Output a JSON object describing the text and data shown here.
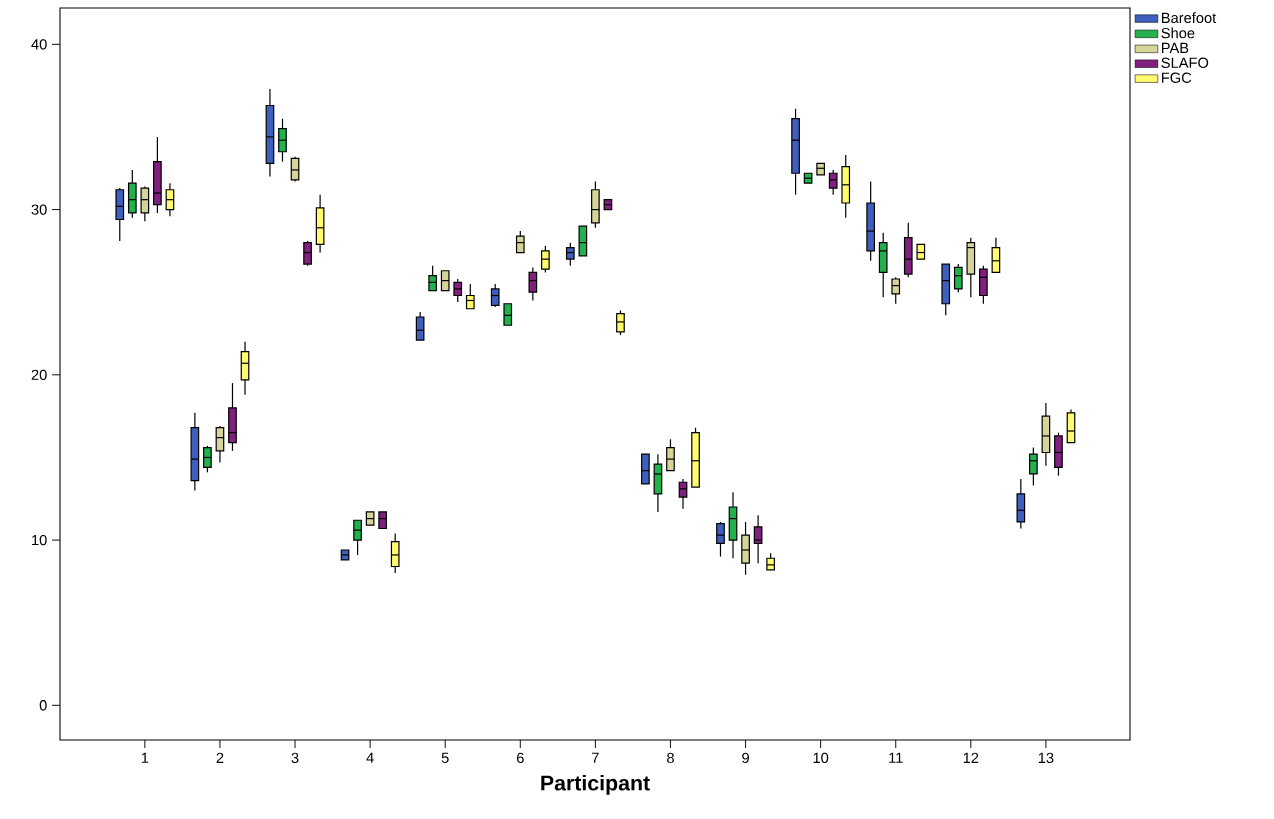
{
  "chart_data": {
    "type": "box",
    "xlabel": "Participant",
    "categories": [
      "1",
      "2",
      "3",
      "4",
      "5",
      "6",
      "7",
      "8",
      "9",
      "10",
      "11",
      "12",
      "13"
    ],
    "ylim": [
      -2.1,
      42.2
    ],
    "yticks": [
      0,
      10,
      20,
      30,
      40
    ],
    "legend": "top right",
    "series": [
      {
        "name": "Barefoot",
        "color": "#3f5fbf",
        "boxes": [
          {
            "low": 28.1,
            "q1": 29.4,
            "median": 30.2,
            "q3": 31.2,
            "high": 31.3
          },
          {
            "low": 13.0,
            "q1": 13.6,
            "median": 14.9,
            "q3": 16.8,
            "high": 17.7
          },
          {
            "low": 32.0,
            "q1": 32.8,
            "median": 34.4,
            "q3": 36.3,
            "high": 37.3
          },
          {
            "low": 8.8,
            "q1": 8.8,
            "median": 9.1,
            "q3": 9.4,
            "high": 9.4
          },
          {
            "low": 22.1,
            "q1": 22.1,
            "median": 22.7,
            "q3": 23.5,
            "high": 23.8
          },
          {
            "low": 24.1,
            "q1": 24.2,
            "median": 24.8,
            "q3": 25.2,
            "high": 25.5
          },
          {
            "low": 26.6,
            "q1": 27.0,
            "median": 27.4,
            "q3": 27.7,
            "high": 28.0
          },
          {
            "low": 13.4,
            "q1": 13.4,
            "median": 14.2,
            "q3": 15.2,
            "high": 15.2
          },
          {
            "low": 9.0,
            "q1": 9.8,
            "median": 10.3,
            "q3": 11.0,
            "high": 11.1
          },
          {
            "low": 30.9,
            "q1": 32.2,
            "median": 34.2,
            "q3": 35.5,
            "high": 36.1
          },
          {
            "low": 26.9,
            "q1": 27.5,
            "median": 28.7,
            "q3": 30.4,
            "high": 31.7
          },
          {
            "low": 23.6,
            "q1": 24.3,
            "median": 25.7,
            "q3": 26.7,
            "high": 26.7
          },
          {
            "low": 10.7,
            "q1": 11.1,
            "median": 11.8,
            "q3": 12.8,
            "high": 13.7
          }
        ]
      },
      {
        "name": "Shoe",
        "color": "#22b14c",
        "boxes": [
          {
            "low": 29.5,
            "q1": 29.8,
            "median": 30.6,
            "q3": 31.6,
            "high": 32.4
          },
          {
            "low": 14.1,
            "q1": 14.4,
            "median": 15.0,
            "q3": 15.6,
            "high": 15.7
          },
          {
            "low": 32.9,
            "q1": 33.5,
            "median": 34.2,
            "q3": 34.9,
            "high": 35.5
          },
          {
            "low": 9.1,
            "q1": 10.0,
            "median": 10.6,
            "q3": 11.2,
            "high": 11.2
          },
          {
            "low": 25.1,
            "q1": 25.1,
            "median": 25.6,
            "q3": 26.0,
            "high": 26.6
          },
          {
            "low": 23.0,
            "q1": 23.0,
            "median": 23.6,
            "q3": 24.3,
            "high": 24.3
          },
          {
            "low": 27.2,
            "q1": 27.2,
            "median": 28.0,
            "q3": 29.0,
            "high": 29.0
          },
          {
            "low": 11.7,
            "q1": 12.8,
            "median": 14.0,
            "q3": 14.6,
            "high": 15.2
          },
          {
            "low": 8.9,
            "q1": 10.0,
            "median": 11.3,
            "q3": 12.0,
            "high": 12.9
          },
          {
            "low": 31.6,
            "q1": 31.6,
            "median": 31.9,
            "q3": 32.2,
            "high": 32.2
          },
          {
            "low": 24.7,
            "q1": 26.2,
            "median": 27.5,
            "q3": 28.0,
            "high": 28.6
          },
          {
            "low": 25.0,
            "q1": 25.2,
            "median": 26.0,
            "q3": 26.5,
            "high": 26.7
          },
          {
            "low": 13.3,
            "q1": 14.0,
            "median": 14.8,
            "q3": 15.2,
            "high": 15.6
          }
        ]
      },
      {
        "name": "PAB",
        "color": "#d7d49a",
        "boxes": [
          {
            "low": 29.3,
            "q1": 29.8,
            "median": 30.6,
            "q3": 31.3,
            "high": 31.4
          },
          {
            "low": 14.7,
            "q1": 15.4,
            "median": 16.2,
            "q3": 16.8,
            "high": 16.9
          },
          {
            "low": 31.7,
            "q1": 31.8,
            "median": 32.4,
            "q3": 33.1,
            "high": 33.2
          },
          {
            "low": 10.9,
            "q1": 10.9,
            "median": 11.3,
            "q3": 11.7,
            "high": 11.7
          },
          {
            "low": 25.1,
            "q1": 25.1,
            "median": 25.7,
            "q3": 26.3,
            "high": 26.3
          },
          {
            "low": 27.4,
            "q1": 27.4,
            "median": 28.0,
            "q3": 28.4,
            "high": 28.7
          },
          {
            "low": 28.9,
            "q1": 29.2,
            "median": 30.0,
            "q3": 31.2,
            "high": 31.7
          },
          {
            "low": 14.2,
            "q1": 14.2,
            "median": 14.9,
            "q3": 15.6,
            "high": 16.1
          },
          {
            "low": 7.9,
            "q1": 8.6,
            "median": 9.4,
            "q3": 10.3,
            "high": 11.1
          },
          {
            "low": 32.1,
            "q1": 32.1,
            "median": 32.5,
            "q3": 32.8,
            "high": 32.8
          },
          {
            "low": 24.3,
            "q1": 24.9,
            "median": 25.4,
            "q3": 25.8,
            "high": 25.9
          },
          {
            "low": 24.7,
            "q1": 26.1,
            "median": 27.7,
            "q3": 28.0,
            "high": 28.3
          },
          {
            "low": 14.5,
            "q1": 15.3,
            "median": 16.3,
            "q3": 17.5,
            "high": 18.3
          }
        ]
      },
      {
        "name": "SLAFO",
        "color": "#80207f",
        "boxes": [
          {
            "low": 29.8,
            "q1": 30.3,
            "median": 31.0,
            "q3": 32.9,
            "high": 34.4
          },
          {
            "low": 15.4,
            "q1": 15.9,
            "median": 16.5,
            "q3": 18.0,
            "high": 19.5
          },
          {
            "low": 26.6,
            "q1": 26.7,
            "median": 27.4,
            "q3": 28.0,
            "high": 28.1
          },
          {
            "low": 10.7,
            "q1": 10.7,
            "median": 11.3,
            "q3": 11.7,
            "high": 11.7
          },
          {
            "low": 24.4,
            "q1": 24.8,
            "median": 25.2,
            "q3": 25.6,
            "high": 25.8
          },
          {
            "low": 24.5,
            "q1": 25.0,
            "median": 25.7,
            "q3": 26.2,
            "high": 26.5
          },
          {
            "low": 30.0,
            "q1": 30.0,
            "median": 30.3,
            "q3": 30.6,
            "high": 30.6
          },
          {
            "low": 11.9,
            "q1": 12.6,
            "median": 13.1,
            "q3": 13.5,
            "high": 13.7
          },
          {
            "low": 8.6,
            "q1": 9.8,
            "median": 10.0,
            "q3": 10.8,
            "high": 11.5
          },
          {
            "low": 30.9,
            "q1": 31.3,
            "median": 31.8,
            "q3": 32.2,
            "high": 32.4
          },
          {
            "low": 25.9,
            "q1": 26.1,
            "median": 27.0,
            "q3": 28.3,
            "high": 29.2
          },
          {
            "low": 24.3,
            "q1": 24.8,
            "median": 25.9,
            "q3": 26.4,
            "high": 26.6
          },
          {
            "low": 13.9,
            "q1": 14.4,
            "median": 15.3,
            "q3": 16.3,
            "high": 16.5
          }
        ]
      },
      {
        "name": "FGC",
        "color": "#fffa6e",
        "boxes": [
          {
            "low": 29.6,
            "q1": 30.0,
            "median": 30.6,
            "q3": 31.2,
            "high": 31.6
          },
          {
            "low": 18.8,
            "q1": 19.7,
            "median": 20.7,
            "q3": 21.4,
            "high": 22.0
          },
          {
            "low": 27.4,
            "q1": 27.9,
            "median": 28.9,
            "q3": 30.1,
            "high": 30.9
          },
          {
            "low": 8.0,
            "q1": 8.4,
            "median": 9.1,
            "q3": 9.9,
            "high": 10.4
          },
          {
            "low": 24.0,
            "q1": 24.0,
            "median": 24.5,
            "q3": 24.8,
            "high": 25.5
          },
          {
            "low": 26.2,
            "q1": 26.4,
            "median": 27.0,
            "q3": 27.5,
            "high": 27.8
          },
          {
            "low": 22.4,
            "q1": 22.6,
            "median": 23.2,
            "q3": 23.7,
            "high": 23.9
          },
          {
            "low": 13.2,
            "q1": 13.2,
            "median": 14.8,
            "q3": 16.5,
            "high": 16.8
          },
          {
            "low": 8.2,
            "q1": 8.2,
            "median": 8.5,
            "q3": 8.9,
            "high": 9.2
          },
          {
            "low": 29.5,
            "q1": 30.4,
            "median": 31.5,
            "q3": 32.6,
            "high": 33.3
          },
          {
            "low": 27.0,
            "q1": 27.0,
            "median": 27.4,
            "q3": 27.9,
            "high": 27.9
          },
          {
            "low": 26.2,
            "q1": 26.2,
            "median": 26.9,
            "q3": 27.7,
            "high": 28.3
          },
          {
            "low": 15.9,
            "q1": 15.9,
            "median": 16.6,
            "q3": 17.7,
            "high": 17.9
          }
        ]
      }
    ]
  }
}
